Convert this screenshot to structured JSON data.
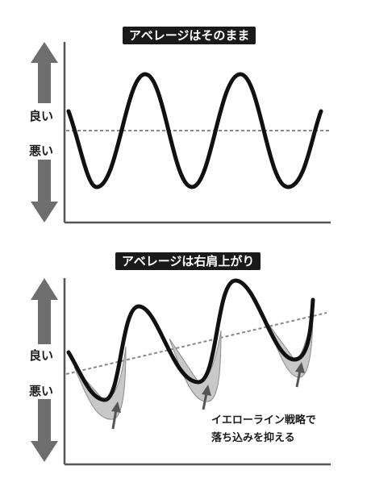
{
  "panels": [
    {
      "title": "アベレージはそのまま",
      "label_good": "良い",
      "label_bad": "悪い",
      "baseline": "flat",
      "curve": "steady-wave"
    },
    {
      "title": "アベレージは右肩上がり",
      "label_good": "良い",
      "label_bad": "悪い",
      "baseline": "rising",
      "curve": "wave-with-shallower-dips",
      "annotation_line1": "イエローライン戦略で",
      "annotation_line2": "落ち込みを抑える"
    }
  ],
  "colors": {
    "curve": "#111111",
    "baseline": "#888888",
    "arrow": "#6e6e6e",
    "shade": "#c8c8c8",
    "axis": "#555555"
  }
}
